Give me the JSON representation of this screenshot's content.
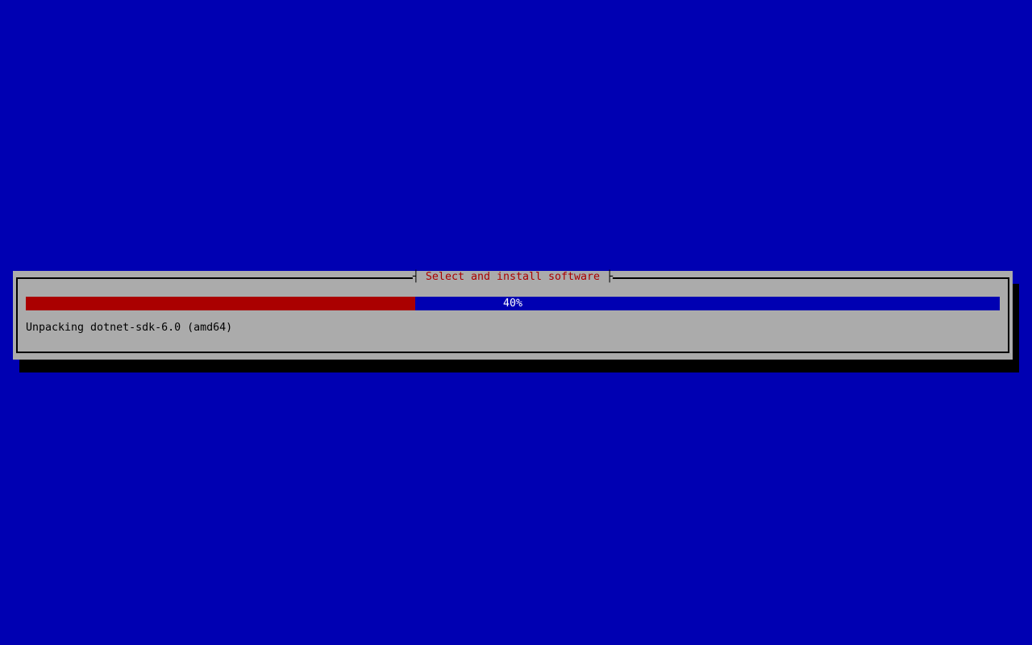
{
  "screen": {
    "background_color": "#0000b2"
  },
  "dialog": {
    "title": "Select and install software",
    "title_left_tick": "┤",
    "title_right_tick": "├",
    "background_color": "#ababab",
    "border_color": "#000000",
    "shadow_color": "#000000",
    "title_color": "#aa0000",
    "status_text": "Unpacking dotnet-sdk-6.0 (amd64)",
    "progress": {
      "percent": 40,
      "label": "40%",
      "fill_color": "#aa0000",
      "track_color": "#0000b2",
      "label_color": "#ffffff"
    }
  }
}
